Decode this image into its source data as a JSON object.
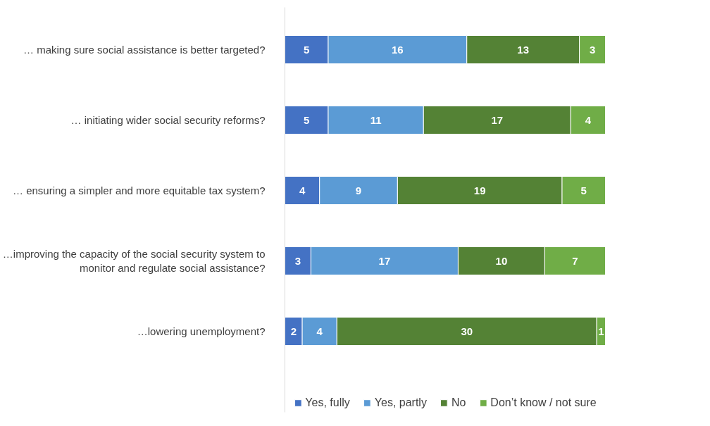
{
  "chart_data": {
    "type": "bar",
    "orientation": "horizontal",
    "stacked": true,
    "data_labels": true,
    "grid": false,
    "legend": "bottom",
    "categories": [
      "… making sure social assistance is better targeted?",
      "… initiating wider social security reforms?",
      "… ensuring a simpler and more equitable tax system?",
      "…improving the capacity of the social security system to monitor and regulate social assistance?",
      "…lowering unemployment?"
    ],
    "series": [
      {
        "name": "Yes, fully",
        "color": "#4472c4",
        "values": [
          5,
          5,
          4,
          3,
          2
        ]
      },
      {
        "name": "Yes, partly",
        "color": "#5b9bd5",
        "values": [
          16,
          11,
          9,
          17,
          4
        ]
      },
      {
        "name": "No",
        "color": "#548235",
        "values": [
          13,
          17,
          19,
          10,
          30
        ]
      },
      {
        "name": "Don’t know / not sure",
        "color": "#70ad47",
        "values": [
          3,
          4,
          5,
          7,
          1
        ]
      }
    ]
  }
}
